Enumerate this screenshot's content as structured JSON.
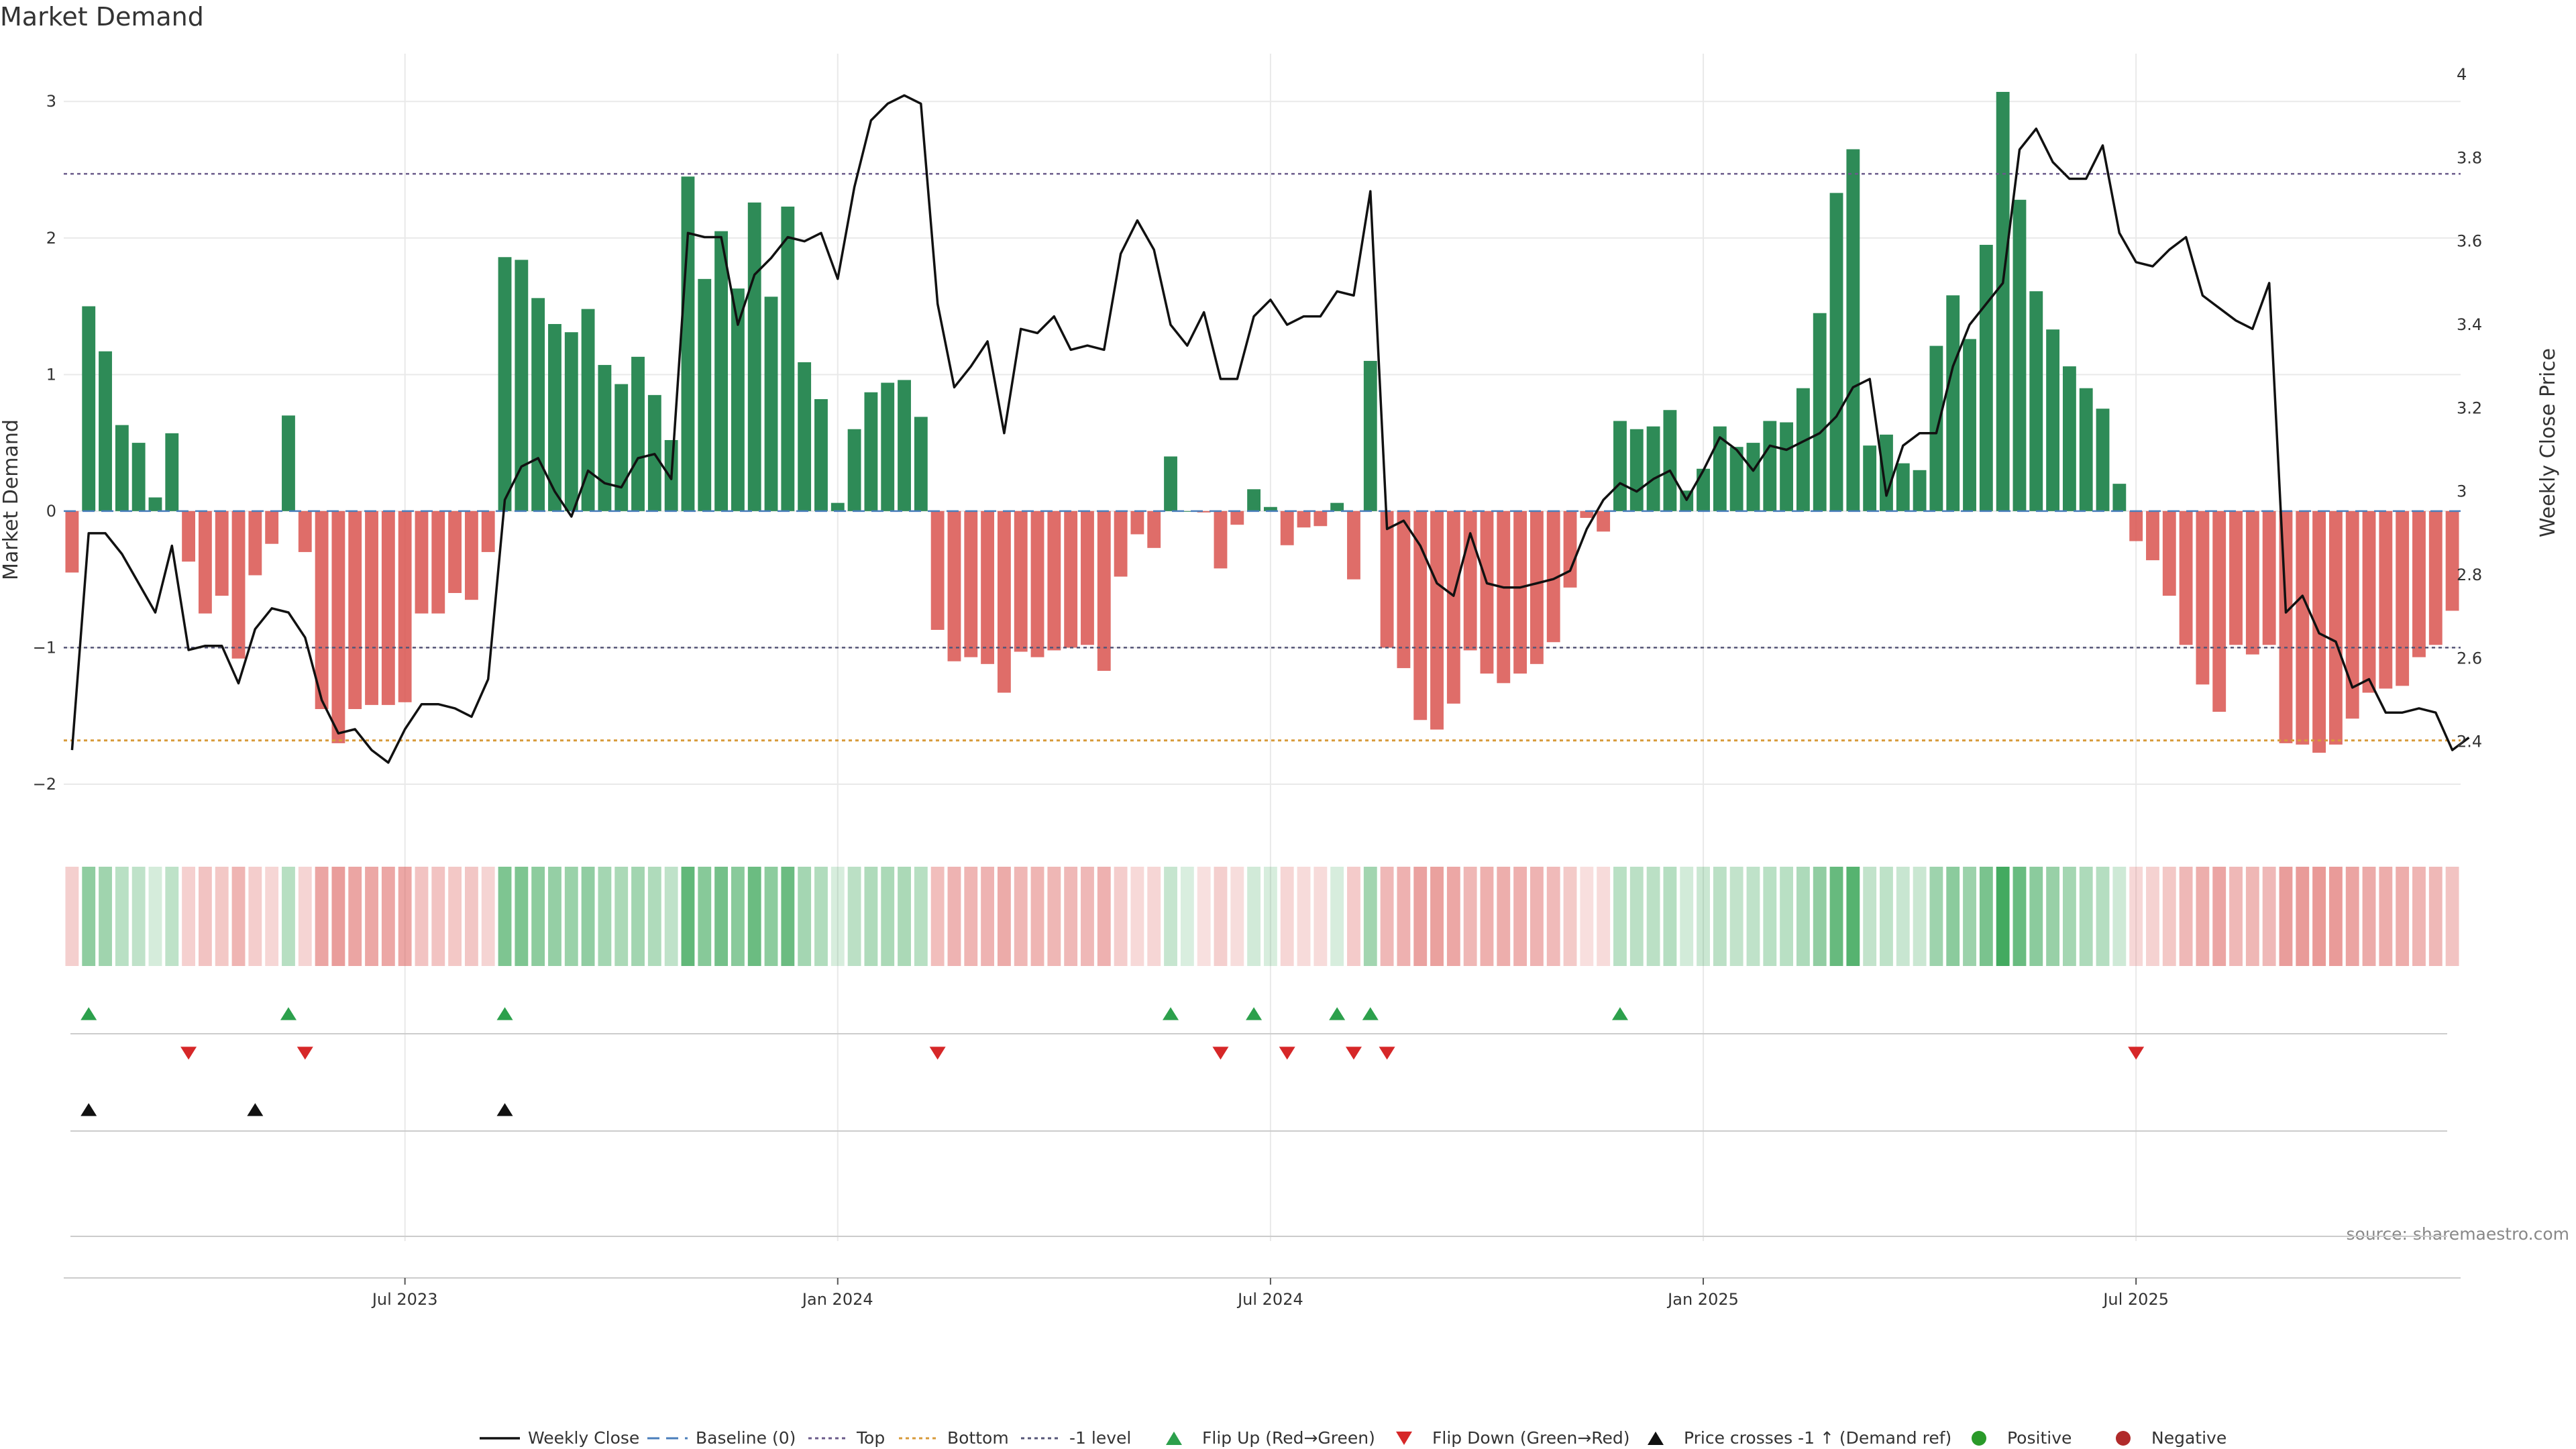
{
  "chart_data": {
    "type": "bar+line",
    "title": "Market Demand",
    "ylabel": "Market Demand",
    "y2label": "Weekly Close Price",
    "source": "source: sharemaestro.com",
    "ylim": [
      -2.3,
      3.35
    ],
    "y2lim": [
      2.2,
      4.05
    ],
    "yticks": [
      {
        "v": 3,
        "label": "3"
      },
      {
        "v": 2,
        "label": "2"
      },
      {
        "v": 1,
        "label": "1"
      },
      {
        "v": 0,
        "label": "0"
      },
      {
        "v": -1,
        "label": "−1"
      },
      {
        "v": -2,
        "label": "−2"
      }
    ],
    "y2ticks": [
      {
        "v": 4,
        "label": "4"
      },
      {
        "v": 3.8,
        "label": "3.8"
      },
      {
        "v": 3.6,
        "label": "3.6"
      },
      {
        "v": 3.4,
        "label": "3.4"
      },
      {
        "v": 3.2,
        "label": "3.2"
      },
      {
        "v": 3,
        "label": "3"
      },
      {
        "v": 2.8,
        "label": "2.8"
      },
      {
        "v": 2.6,
        "label": "2.6"
      },
      {
        "v": 2.4,
        "label": "2.4"
      }
    ],
    "xticks": [
      {
        "i": 20,
        "label": "Jul 2023"
      },
      {
        "i": 46,
        "label": "Jan 2024"
      },
      {
        "i": 72,
        "label": "Jul 2024"
      },
      {
        "i": 98,
        "label": "Jan 2025"
      },
      {
        "i": 124,
        "label": "Jul 2025"
      }
    ],
    "levels": {
      "top": 2.47,
      "bottom": -1.68,
      "minus_one": -1.0,
      "baseline": 0
    },
    "demand": [
      -0.45,
      1.5,
      1.17,
      0.63,
      0.5,
      0.1,
      0.57,
      -0.37,
      -0.75,
      -0.62,
      -1.08,
      -0.47,
      -0.24,
      0.7,
      -0.3,
      -1.45,
      -1.7,
      -1.45,
      -1.42,
      -1.42,
      -1.4,
      -0.75,
      -0.75,
      -0.6,
      -0.65,
      -0.3,
      1.86,
      1.84,
      1.56,
      1.37,
      1.31,
      1.48,
      1.07,
      0.93,
      1.13,
      0.85,
      0.52,
      2.45,
      1.7,
      2.05,
      1.63,
      2.26,
      1.57,
      2.23,
      1.09,
      0.82,
      0.06,
      0.6,
      0.87,
      0.94,
      0.96,
      0.69,
      -0.87,
      -1.1,
      -1.07,
      -1.12,
      -1.33,
      -1.03,
      -1.07,
      -1.02,
      -1.0,
      -0.98,
      -1.17,
      -0.48,
      -0.17,
      -0.27,
      0.4,
      0.0,
      -0.01,
      -0.42,
      -0.1,
      0.16,
      0.03,
      -0.25,
      -0.12,
      -0.11,
      0.06,
      -0.5,
      1.1,
      -1.0,
      -1.15,
      -1.53,
      -1.6,
      -1.41,
      -1.02,
      -1.19,
      -1.26,
      -1.19,
      -1.12,
      -0.96,
      -0.56,
      -0.05,
      -0.15,
      0.66,
      0.6,
      0.62,
      0.74,
      0.15,
      0.31,
      0.62,
      0.47,
      0.5,
      0.66,
      0.65,
      0.9,
      1.45,
      2.33,
      2.65,
      0.48,
      0.56,
      0.35,
      0.3,
      1.21,
      1.58,
      1.26,
      1.95,
      3.07,
      2.28,
      1.61,
      1.33,
      1.06,
      0.9,
      0.75,
      0.2,
      -0.22,
      -0.36,
      -0.62,
      -0.98,
      -1.27,
      -1.47,
      -0.98,
      -1.05,
      -0.98,
      -1.7,
      -1.71,
      -1.77,
      -1.71,
      -1.52,
      -1.33,
      -1.3,
      -1.28,
      -1.07,
      -0.98,
      -0.73
    ],
    "price": [
      2.38,
      2.9,
      2.9,
      2.85,
      2.78,
      2.71,
      2.87,
      2.62,
      2.63,
      2.63,
      2.54,
      2.67,
      2.72,
      2.71,
      2.65,
      2.5,
      2.42,
      2.43,
      2.38,
      2.35,
      2.43,
      2.49,
      2.49,
      2.48,
      2.46,
      2.55,
      2.98,
      3.06,
      3.08,
      3.0,
      2.94,
      3.05,
      3.02,
      3.01,
      3.08,
      3.09,
      3.03,
      3.62,
      3.61,
      3.61,
      3.4,
      3.52,
      3.56,
      3.61,
      3.6,
      3.62,
      3.51,
      3.73,
      3.89,
      3.93,
      3.95,
      3.93,
      3.45,
      3.25,
      3.3,
      3.36,
      3.14,
      3.39,
      3.38,
      3.42,
      3.34,
      3.35,
      3.34,
      3.57,
      3.65,
      3.58,
      3.4,
      3.35,
      3.43,
      3.27,
      3.27,
      3.42,
      3.46,
      3.4,
      3.42,
      3.42,
      3.48,
      3.47,
      3.72,
      2.91,
      2.93,
      2.87,
      2.78,
      2.75,
      2.9,
      2.78,
      2.77,
      2.77,
      2.78,
      2.79,
      2.81,
      2.91,
      2.98,
      3.02,
      3.0,
      3.03,
      3.05,
      2.98,
      3.05,
      3.13,
      3.1,
      3.05,
      3.11,
      3.1,
      3.12,
      3.14,
      3.18,
      3.25,
      3.27,
      2.99,
      3.11,
      3.14,
      3.14,
      3.3,
      3.4,
      3.45,
      3.5,
      3.82,
      3.87,
      3.79,
      3.75,
      3.75,
      3.83,
      3.62,
      3.55,
      3.54,
      3.58,
      3.61,
      3.47,
      3.44,
      3.41,
      3.39,
      3.5,
      2.71,
      2.75,
      2.66,
      2.64,
      2.53,
      2.55,
      2.47,
      2.47,
      2.48,
      2.47,
      2.38,
      2.41
    ],
    "flip_up": [
      1,
      13,
      26,
      66,
      71,
      76,
      78,
      93
    ],
    "flip_down": [
      7,
      14,
      52,
      69,
      73,
      77,
      79,
      124
    ],
    "price_cross": [
      1,
      11,
      26
    ],
    "legend": [
      {
        "key": "weekly_close",
        "label": "Weekly Close"
      },
      {
        "key": "baseline",
        "label": "Baseline (0)"
      },
      {
        "key": "top",
        "label": "Top"
      },
      {
        "key": "bottom",
        "label": "Bottom"
      },
      {
        "key": "minus_one",
        "label": "-1 level"
      },
      {
        "key": "flip_up",
        "label": "Flip Up (Red→Green)"
      },
      {
        "key": "flip_down",
        "label": "Flip Down (Green→Red)"
      },
      {
        "key": "price_cross",
        "label": "Price crosses -1 ↑ (Demand ref)"
      },
      {
        "key": "positive",
        "label": "Positive"
      },
      {
        "key": "negative",
        "label": "Negative"
      }
    ]
  },
  "colors": {
    "positive": "#2e8b57",
    "negative": "#d9534f",
    "price": "#111111",
    "top": "#6a5a8a",
    "bottom": "#d79a3a",
    "minus_one": "#555577",
    "baseline": "#4a7ebb",
    "flip_up": "#2ca04c",
    "flip_down": "#d62728",
    "cross": "#111111",
    "grid": "#e9e9e9",
    "axis": "#cccccc",
    "dot_positive": "#2a9a2a",
    "dot_negative": "#b02a2a"
  }
}
